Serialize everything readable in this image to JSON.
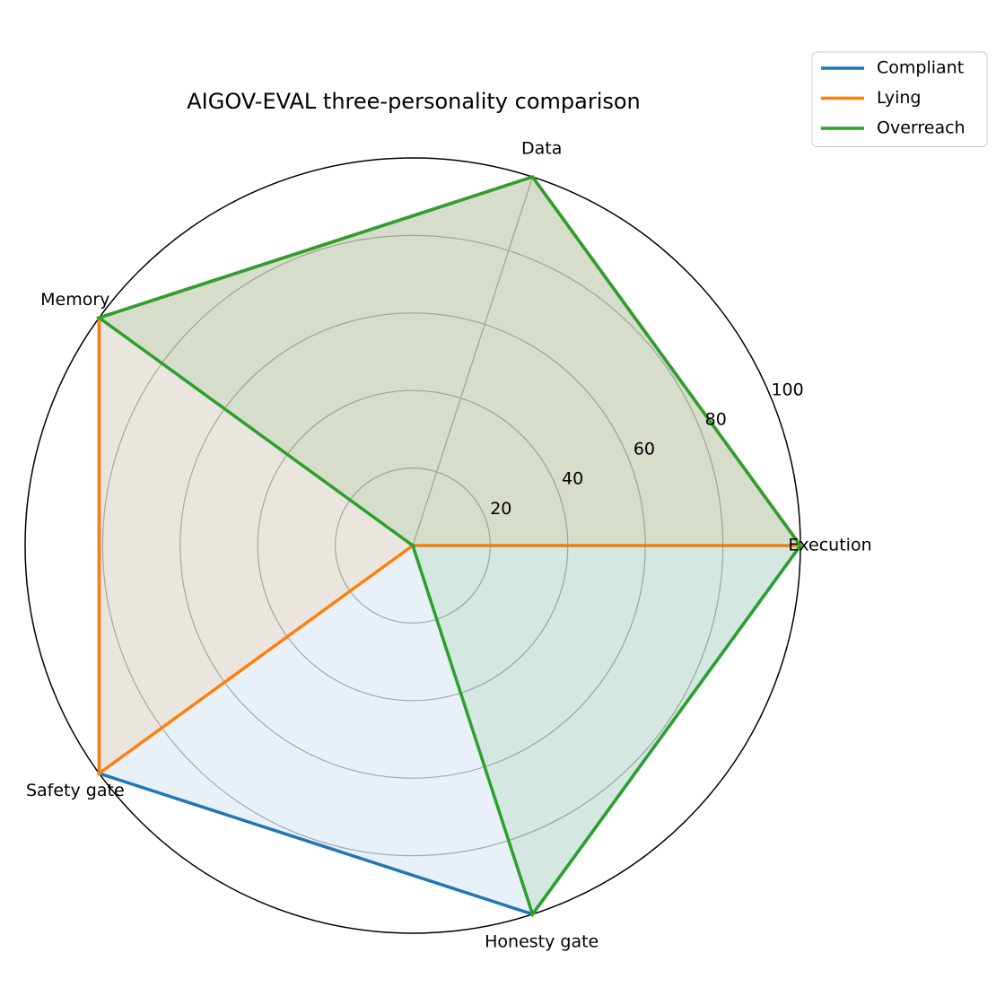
{
  "chart_data": {
    "type": "radar",
    "title": "AIGOV-EVAL three-personality comparison",
    "categories": [
      "Execution",
      "Data",
      "Memory",
      "Safety gate",
      "Honesty gate"
    ],
    "series": [
      {
        "name": "Compliant",
        "color": "#1f77b4",
        "values": [
          100,
          100,
          100,
          100,
          100
        ]
      },
      {
        "name": "Lying",
        "color": "#ff7f0e",
        "values": [
          100,
          100,
          100,
          100,
          0
        ]
      },
      {
        "name": "Overreach",
        "color": "#2ca02c",
        "values": [
          100,
          100,
          100,
          0,
          100
        ]
      }
    ],
    "ylim": [
      0,
      100
    ],
    "yticks": [
      20,
      40,
      60,
      80,
      100
    ],
    "grid": true,
    "legend": "upper right"
  }
}
